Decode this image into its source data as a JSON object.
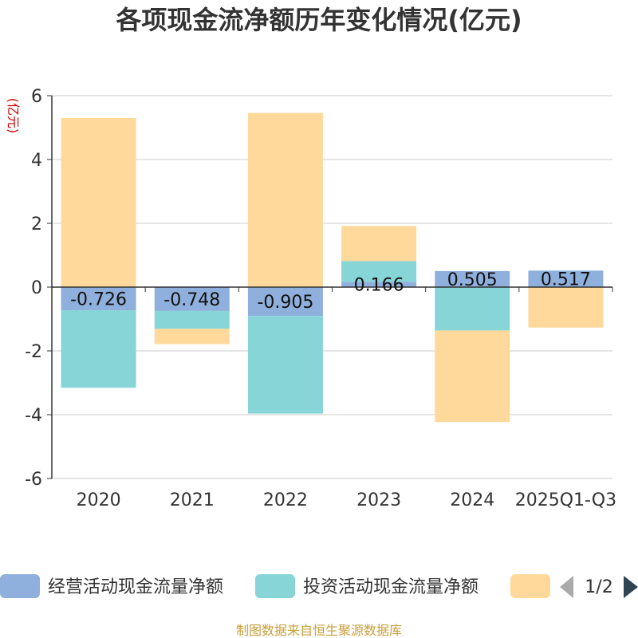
{
  "chart_data": {
    "type": "bar",
    "stacked": true,
    "title": "各项现金流净额历年变化情况(亿元)",
    "ylabel": "(亿元)",
    "xlabel": "",
    "ylim": [
      -6,
      6
    ],
    "yticks": [
      6,
      4,
      2,
      0,
      -2,
      -4,
      -6
    ],
    "categories": [
      "2020",
      "2021",
      "2022",
      "2023",
      "2024",
      "2025Q1-Q3"
    ],
    "series": [
      {
        "name": "经营活动现金流量净额",
        "color": "#8fb0dc",
        "values": [
          -0.726,
          -0.748,
          -0.905,
          0.166,
          0.505,
          0.517
        ],
        "labels": [
          "-0.726",
          "-0.748",
          "-0.905",
          "0.166",
          "0.505",
          "0.517"
        ]
      },
      {
        "name": "投资活动现金流量净额",
        "color": "#87d5d7",
        "values": [
          -2.43,
          -0.56,
          -3.06,
          0.65,
          -1.36,
          0
        ]
      },
      {
        "name": "",
        "color": "#fed99b",
        "values": [
          5.3,
          -0.48,
          5.46,
          1.1,
          -2.87,
          -1.27
        ]
      }
    ],
    "legend": {
      "position": "bottom",
      "page": "1/2"
    }
  },
  "source": "制图数据来自恒生聚源数据库"
}
